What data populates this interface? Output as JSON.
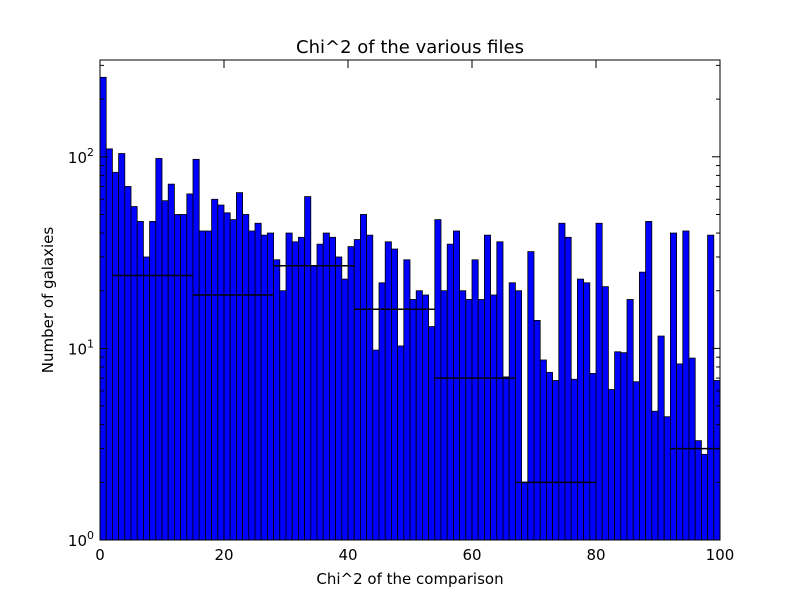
{
  "chart_data": {
    "type": "bar",
    "title": "Chi^2 of the various files",
    "xlabel": "Chi^2 of the comparison",
    "ylabel": "Number of galaxies",
    "xlim": [
      0,
      100
    ],
    "ylim": [
      1,
      320
    ],
    "yscale": "log",
    "grid": false,
    "bar_color": "#0000ff",
    "edge_color": "#000000",
    "x_ticks": [
      "0",
      "20",
      "40",
      "60",
      "80",
      "100"
    ],
    "y_ticks": [
      {
        "base": "10",
        "exp": "0",
        "value": 1
      },
      {
        "base": "10",
        "exp": "1",
        "value": 10
      },
      {
        "base": "10",
        "exp": "2",
        "value": 100
      }
    ],
    "bin_width": 1,
    "values": [
      260,
      110,
      83,
      104,
      70,
      55,
      46,
      30,
      46,
      98,
      59,
      72,
      50,
      50,
      64,
      97,
      41,
      41,
      60,
      56,
      51,
      47,
      65,
      50,
      41,
      45,
      39,
      40,
      29,
      20,
      40,
      36,
      38,
      62,
      27,
      35,
      40,
      38,
      30,
      23,
      34,
      37,
      50,
      39,
      9.8,
      22,
      36,
      33,
      10.3,
      29,
      18,
      20,
      19,
      13,
      47,
      20,
      35,
      41,
      20,
      18,
      29,
      18,
      39,
      19,
      36,
      7.1,
      22,
      20,
      2.0,
      32,
      14,
      8.7,
      7.5,
      6.8,
      45,
      38,
      6.9,
      23,
      22,
      7.4,
      45,
      21,
      6.1,
      9.6,
      9.5,
      18,
      6.7,
      25,
      46,
      4.7,
      11.6,
      4.4,
      40,
      8.3,
      41,
      8.9,
      3.3,
      2.8,
      39,
      6.8
    ],
    "error_bars": [
      {
        "y": 24,
        "x0": 2,
        "x1": 15
      },
      {
        "y": 19,
        "x0": 15,
        "x1": 28
      },
      {
        "y": 27,
        "x0": 28,
        "x1": 41
      },
      {
        "y": 16,
        "x0": 41,
        "x1": 54
      },
      {
        "y": 7,
        "x0": 54,
        "x1": 67
      },
      {
        "y": 2,
        "x0": 67,
        "x1": 80
      },
      {
        "y": 3,
        "x0": 92,
        "x1": 100
      }
    ]
  }
}
